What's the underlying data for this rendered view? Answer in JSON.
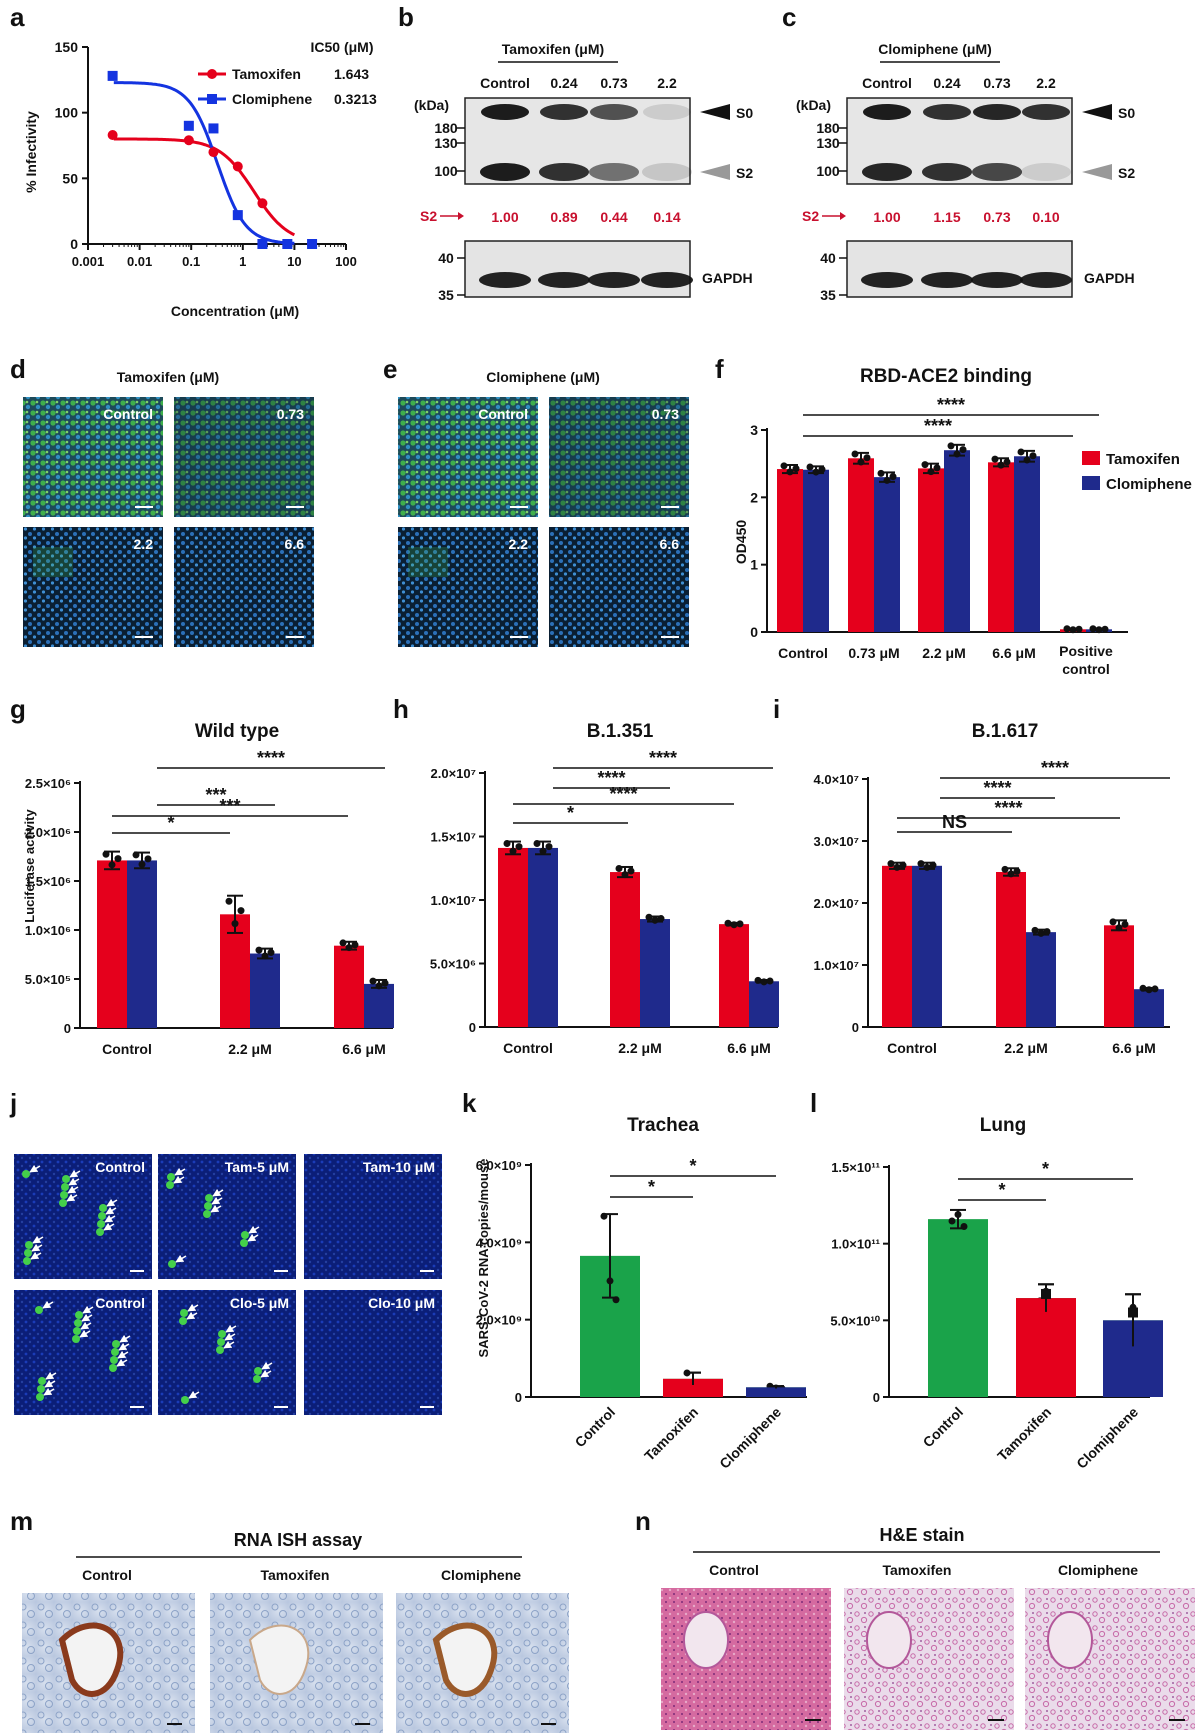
{
  "colors": {
    "tamoxifen": "#e5001c",
    "clomiphene": "#1f2a8c",
    "control_green": "#1aa34a",
    "s2_red": "#c8102e"
  },
  "panels": {
    "a": {
      "label": "a",
      "ylabel": "% Infectivity",
      "xlabel": "Concentration (μM)",
      "yticks": [
        "0",
        "50",
        "100",
        "150"
      ],
      "xticks": [
        "0.001",
        "0.01",
        "0.1",
        "1",
        "10",
        "100"
      ],
      "ic50_header": "IC50 (μM)",
      "legend": [
        {
          "name": "Tamoxifen",
          "ic50": "1.643"
        },
        {
          "name": "Clomiphene",
          "ic50": "0.3213"
        }
      ]
    },
    "b": {
      "label": "b",
      "title": "Tamoxifen (μM)",
      "lanes": [
        "Control",
        "0.24",
        "0.73",
        "2.2"
      ],
      "kda": "(kDa)",
      "markers_top": [
        "180",
        "130",
        "100"
      ],
      "markers_bottom": [
        "40",
        "35"
      ],
      "s0": "S0",
      "s2": "S2",
      "s2_label": "S2",
      "s2_values": [
        "1.00",
        "0.89",
        "0.44",
        "0.14"
      ],
      "gapdh": "GAPDH"
    },
    "c": {
      "label": "c",
      "title": "Clomiphene (μM)",
      "lanes": [
        "Control",
        "0.24",
        "0.73",
        "2.2"
      ],
      "kda": "(kDa)",
      "markers_top": [
        "180",
        "130",
        "100"
      ],
      "markers_bottom": [
        "40",
        "35"
      ],
      "s0": "S0",
      "s2": "S2",
      "s2_label": "S2",
      "s2_values": [
        "1.00",
        "1.15",
        "0.73",
        "0.10"
      ],
      "gapdh": "GAPDH"
    },
    "d": {
      "label": "d",
      "title": "Tamoxifen (μM)",
      "tiles": [
        "Control",
        "0.73",
        "2.2",
        "6.6"
      ]
    },
    "e": {
      "label": "e",
      "title": "Clomiphene (μM)",
      "tiles": [
        "Control",
        "0.73",
        "2.2",
        "6.6"
      ]
    },
    "f": {
      "label": "f",
      "title": "RBD-ACE2 binding",
      "ylabel": "OD450",
      "yticks": [
        "0",
        "1",
        "2",
        "3"
      ],
      "categories": [
        "Control",
        "0.73 μM",
        "2.2 μM",
        "6.6 μM",
        "Positive control"
      ],
      "sig": [
        "****",
        "****"
      ]
    },
    "g": {
      "label": "g",
      "title": "Wild type",
      "ylabel": "Luciferase activity",
      "yticks": [
        "0",
        "5.0×10⁵",
        "1.0×10⁶",
        "1.5×10⁶",
        "2.0×10⁶",
        "2.5×10⁶"
      ],
      "categories": [
        "Control",
        "2.2 μM",
        "6.6 μM"
      ],
      "sig": [
        "*",
        "***",
        "***",
        "****"
      ]
    },
    "h": {
      "label": "h",
      "title": "B.1.351",
      "yticks": [
        "0",
        "5.0×10⁶",
        "1.0×10⁷",
        "1.5×10⁷",
        "2.0×10⁷"
      ],
      "categories": [
        "Control",
        "2.2 μM",
        "6.6 μM"
      ],
      "sig": [
        "*",
        "****",
        "****",
        "****"
      ]
    },
    "i": {
      "label": "i",
      "title": "B.1.617",
      "yticks": [
        "0",
        "1.0×10⁷",
        "2.0×10⁷",
        "3.0×10⁷",
        "4.0×10⁷"
      ],
      "categories": [
        "Control",
        "2.2 μM",
        "6.6 μM"
      ],
      "sig": [
        "NS",
        "****",
        "****",
        "****"
      ]
    },
    "j": {
      "label": "j",
      "tiles": [
        "Control",
        "Tam-5 μM",
        "Tam-10 μM",
        "Control",
        "Clo-5 μM",
        "Clo-10 μM"
      ]
    },
    "k": {
      "label": "k",
      "title": "Trachea",
      "ylabel": "SARS-CoV-2 RNA copies/mouse",
      "yticks": [
        "0",
        "2.0×10⁹",
        "4.0×10⁹",
        "6.0×10⁹"
      ],
      "categories": [
        "Control",
        "Tamoxifen",
        "Clomiphene"
      ],
      "sig": [
        "*",
        "*"
      ]
    },
    "l": {
      "label": "l",
      "title": "Lung",
      "yticks": [
        "0",
        "5.0×10¹⁰",
        "1.0×10¹¹",
        "1.5×10¹¹"
      ],
      "categories": [
        "Control",
        "Tamoxifen",
        "Clomiphene"
      ],
      "sig": [
        "*",
        "*"
      ]
    },
    "m": {
      "label": "m",
      "title": "RNA ISH assay",
      "groups": [
        "Control",
        "Tamoxifen",
        "Clomiphene"
      ]
    },
    "n": {
      "label": "n",
      "title": "H&E stain",
      "groups": [
        "Control",
        "Tamoxifen",
        "Clomiphene"
      ]
    }
  },
  "chart_data": [
    {
      "panel": "a",
      "type": "line",
      "xscale": "log",
      "xlim": [
        0.001,
        100
      ],
      "ylim": [
        0,
        150
      ],
      "series": [
        {
          "name": "Tamoxifen",
          "x": [
            0.003,
            0.09,
            0.27,
            0.8,
            2.4,
            7.3,
            22
          ],
          "y": [
            83,
            79,
            70,
            59,
            31,
            0,
            0
          ]
        },
        {
          "name": "Clomiphene",
          "x": [
            0.003,
            0.09,
            0.27,
            0.8,
            2.4,
            7.3,
            22
          ],
          "y": [
            128,
            90,
            88,
            22,
            0,
            0,
            0
          ]
        }
      ]
    },
    {
      "panel": "f",
      "type": "bar",
      "ylim": [
        0,
        3
      ],
      "categories": [
        "Control",
        "0.73 μM",
        "2.2 μM",
        "6.6 μM",
        "Positive control"
      ],
      "series": [
        {
          "name": "Tamoxifen",
          "values": [
            2.42,
            2.58,
            2.43,
            2.52,
            0.04
          ],
          "err": [
            0.06,
            0.08,
            0.07,
            0.06,
            0.01
          ]
        },
        {
          "name": "Clomiphene",
          "values": [
            2.41,
            2.3,
            2.7,
            2.61,
            0.04
          ],
          "err": [
            0.05,
            0.07,
            0.08,
            0.08,
            0.01
          ]
        }
      ]
    },
    {
      "panel": "g",
      "type": "bar",
      "ylim": [
        0,
        2500000
      ],
      "categories": [
        "Control",
        "2.2 μM",
        "6.6 μM"
      ],
      "series": [
        {
          "name": "Tamoxifen",
          "values": [
            1710000,
            1160000,
            840000
          ],
          "err": [
            90000,
            190000,
            40000
          ]
        },
        {
          "name": "Clomiphene",
          "values": [
            1710000,
            760000,
            450000
          ],
          "err": [
            80000,
            50000,
            40000
          ]
        }
      ]
    },
    {
      "panel": "h",
      "type": "bar",
      "ylim": [
        0,
        20000000
      ],
      "categories": [
        "Control",
        "2.2 μM",
        "6.6 μM"
      ],
      "series": [
        {
          "name": "Tamoxifen",
          "values": [
            14100000,
            12200000,
            8100000
          ],
          "err": [
            500000,
            400000,
            100000
          ]
        },
        {
          "name": "Clomiphene",
          "values": [
            14100000,
            8500000,
            3600000
          ],
          "err": [
            500000,
            200000,
            100000
          ]
        }
      ]
    },
    {
      "panel": "i",
      "type": "bar",
      "ylim": [
        0,
        40000000
      ],
      "categories": [
        "Control",
        "2.2 μM",
        "6.6 μM"
      ],
      "series": [
        {
          "name": "Tamoxifen",
          "values": [
            26000000,
            25000000,
            16400000
          ],
          "err": [
            500000,
            600000,
            800000
          ]
        },
        {
          "name": "Clomiphene",
          "values": [
            26000000,
            15300000,
            6100000
          ],
          "err": [
            500000,
            400000,
            200000
          ]
        }
      ]
    },
    {
      "panel": "k",
      "type": "bar",
      "ylim": [
        0,
        6000000000
      ],
      "categories": [
        "Control",
        "Tamoxifen",
        "Clomiphene"
      ],
      "values": [
        3650000000,
        470000000,
        250000000
      ],
      "err": [
        1080000000,
        160000000,
        30000000
      ]
    },
    {
      "panel": "l",
      "type": "bar",
      "ylim": [
        0,
        150000000000
      ],
      "categories": [
        "Control",
        "Tamoxifen",
        "Clomiphene"
      ],
      "values": [
        116000000000,
        64500000000,
        50000000000
      ],
      "err": [
        6000000000,
        9000000000,
        17000000000
      ]
    }
  ]
}
